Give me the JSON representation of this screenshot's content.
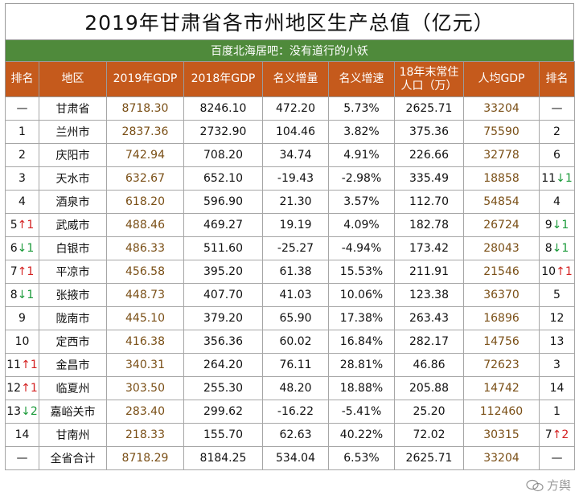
{
  "title": "2019年甘肃省各市州地区生产总值（亿元）",
  "subtitle": "百度北海居吧：没有道行的小妖",
  "headers": [
    "排名",
    "地区",
    "2019年GDP",
    "2018年GDP",
    "名义增量",
    "名义增速",
    "18年末常住人口（万）",
    "人均GDP",
    "排名"
  ],
  "rows": [
    {
      "rank": "—",
      "rank_arrow": "",
      "rank_delta": "",
      "region": "甘肃省",
      "gdp2019": "8718.30",
      "gdp2018": "8246.10",
      "increase": "472.20",
      "rate": "5.73%",
      "pop": "2625.71",
      "per_capita": "33204",
      "rank2": "—",
      "rank2_arrow": "",
      "rank2_delta": ""
    },
    {
      "rank": "1",
      "rank_arrow": "",
      "rank_delta": "",
      "region": "兰州市",
      "gdp2019": "2837.36",
      "gdp2018": "2732.90",
      "increase": "104.46",
      "rate": "3.82%",
      "pop": "375.36",
      "per_capita": "75590",
      "rank2": "2",
      "rank2_arrow": "",
      "rank2_delta": ""
    },
    {
      "rank": "2",
      "rank_arrow": "",
      "rank_delta": "",
      "region": "庆阳市",
      "gdp2019": "742.94",
      "gdp2018": "708.20",
      "increase": "34.74",
      "rate": "4.91%",
      "pop": "226.66",
      "per_capita": "32778",
      "rank2": "6",
      "rank2_arrow": "",
      "rank2_delta": ""
    },
    {
      "rank": "3",
      "rank_arrow": "",
      "rank_delta": "",
      "region": "天水市",
      "gdp2019": "632.67",
      "gdp2018": "652.10",
      "increase": "-19.43",
      "rate": "-2.98%",
      "pop": "335.49",
      "per_capita": "18858",
      "rank2": "11",
      "rank2_arrow": "↓",
      "rank2_delta": "1"
    },
    {
      "rank": "4",
      "rank_arrow": "",
      "rank_delta": "",
      "region": "酒泉市",
      "gdp2019": "618.20",
      "gdp2018": "596.90",
      "increase": "21.30",
      "rate": "3.57%",
      "pop": "112.70",
      "per_capita": "54854",
      "rank2": "4",
      "rank2_arrow": "",
      "rank2_delta": ""
    },
    {
      "rank": "5",
      "rank_arrow": "↑",
      "rank_delta": "1",
      "region": "武威市",
      "gdp2019": "488.46",
      "gdp2018": "469.27",
      "increase": "19.19",
      "rate": "4.09%",
      "pop": "182.78",
      "per_capita": "26724",
      "rank2": "9",
      "rank2_arrow": "↓",
      "rank2_delta": "1"
    },
    {
      "rank": "6",
      "rank_arrow": "↓",
      "rank_delta": "1",
      "region": "白银市",
      "gdp2019": "486.33",
      "gdp2018": "511.60",
      "increase": "-25.27",
      "rate": "-4.94%",
      "pop": "173.42",
      "per_capita": "28043",
      "rank2": "8",
      "rank2_arrow": "↓",
      "rank2_delta": "1"
    },
    {
      "rank": "7",
      "rank_arrow": "↑",
      "rank_delta": "1",
      "region": "平凉市",
      "gdp2019": "456.58",
      "gdp2018": "395.20",
      "increase": "61.38",
      "rate": "15.53%",
      "pop": "211.91",
      "per_capita": "21546",
      "rank2": "10",
      "rank2_arrow": "↑",
      "rank2_delta": "1"
    },
    {
      "rank": "8",
      "rank_arrow": "↓",
      "rank_delta": "1",
      "region": "张掖市",
      "gdp2019": "448.73",
      "gdp2018": "407.70",
      "increase": "41.03",
      "rate": "10.06%",
      "pop": "123.38",
      "per_capita": "36370",
      "rank2": "5",
      "rank2_arrow": "",
      "rank2_delta": ""
    },
    {
      "rank": "9",
      "rank_arrow": "",
      "rank_delta": "",
      "region": "陇南市",
      "gdp2019": "445.10",
      "gdp2018": "379.20",
      "increase": "65.90",
      "rate": "17.38%",
      "pop": "263.43",
      "per_capita": "16896",
      "rank2": "12",
      "rank2_arrow": "",
      "rank2_delta": ""
    },
    {
      "rank": "10",
      "rank_arrow": "",
      "rank_delta": "",
      "region": "定西市",
      "gdp2019": "416.38",
      "gdp2018": "356.36",
      "increase": "60.02",
      "rate": "16.84%",
      "pop": "282.17",
      "per_capita": "14756",
      "rank2": "13",
      "rank2_arrow": "",
      "rank2_delta": ""
    },
    {
      "rank": "11",
      "rank_arrow": "↑",
      "rank_delta": "1",
      "region": "金昌市",
      "gdp2019": "340.31",
      "gdp2018": "264.20",
      "increase": "76.11",
      "rate": "28.81%",
      "pop": "46.86",
      "per_capita": "72623",
      "rank2": "3",
      "rank2_arrow": "",
      "rank2_delta": ""
    },
    {
      "rank": "12",
      "rank_arrow": "↑",
      "rank_delta": "1",
      "region": "临夏州",
      "gdp2019": "303.50",
      "gdp2018": "255.30",
      "increase": "48.20",
      "rate": "18.88%",
      "pop": "205.88",
      "per_capita": "14742",
      "rank2": "14",
      "rank2_arrow": "",
      "rank2_delta": ""
    },
    {
      "rank": "13",
      "rank_arrow": "↓",
      "rank_delta": "2",
      "region": "嘉峪关市",
      "gdp2019": "283.40",
      "gdp2018": "299.62",
      "increase": "-16.22",
      "rate": "-5.41%",
      "pop": "25.20",
      "per_capita": "112460",
      "rank2": "1",
      "rank2_arrow": "",
      "rank2_delta": ""
    },
    {
      "rank": "14",
      "rank_arrow": "",
      "rank_delta": "",
      "region": "甘南州",
      "gdp2019": "218.33",
      "gdp2018": "155.70",
      "increase": "62.63",
      "rate": "40.22%",
      "pop": "72.02",
      "per_capita": "30315",
      "rank2": "7",
      "rank2_arrow": "↑",
      "rank2_delta": "2"
    },
    {
      "rank": "—",
      "rank_arrow": "",
      "rank_delta": "",
      "region": "全省合计",
      "gdp2019": "8718.29",
      "gdp2018": "8184.25",
      "increase": "534.04",
      "rate": "6.53%",
      "pop": "2625.71",
      "per_capita": "33204",
      "rank2": "—",
      "rank2_arrow": "",
      "rank2_delta": ""
    }
  ],
  "watermark": {
    "icon": "wechat-icon",
    "text": "方舆"
  },
  "colors": {
    "header_bg": "#c55a1c",
    "subtitle_bg": "#4f8a3b",
    "up": "#d42020",
    "down": "#1b9a3a"
  }
}
